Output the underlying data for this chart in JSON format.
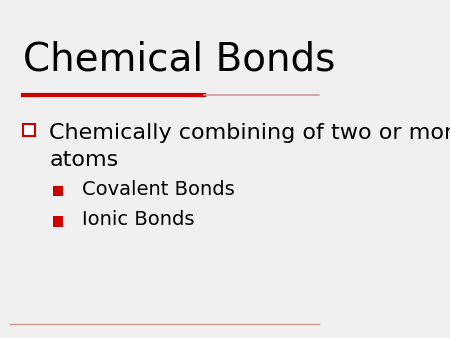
{
  "title": "Chemical Bonds",
  "background_color": "#f0f0f0",
  "title_color": "#000000",
  "title_fontsize": 28,
  "title_font": "DejaVu Sans",
  "divider_color_thick": "#cc0000",
  "divider_color_thin": "#cc9999",
  "bullet1_text": "Chemically combining of two or more\natoms",
  "bullet1_marker_color": "#ffffff",
  "bullet1_marker_border": "#cc0000",
  "bullet1_fontsize": 16,
  "sub_bullets": [
    "Covalent Bonds",
    "Ionic Bonds"
  ],
  "sub_bullet_color": "#cc0000",
  "sub_bullet_fontsize": 14,
  "text_color": "#000000",
  "bottom_line_color": "#cc9999"
}
